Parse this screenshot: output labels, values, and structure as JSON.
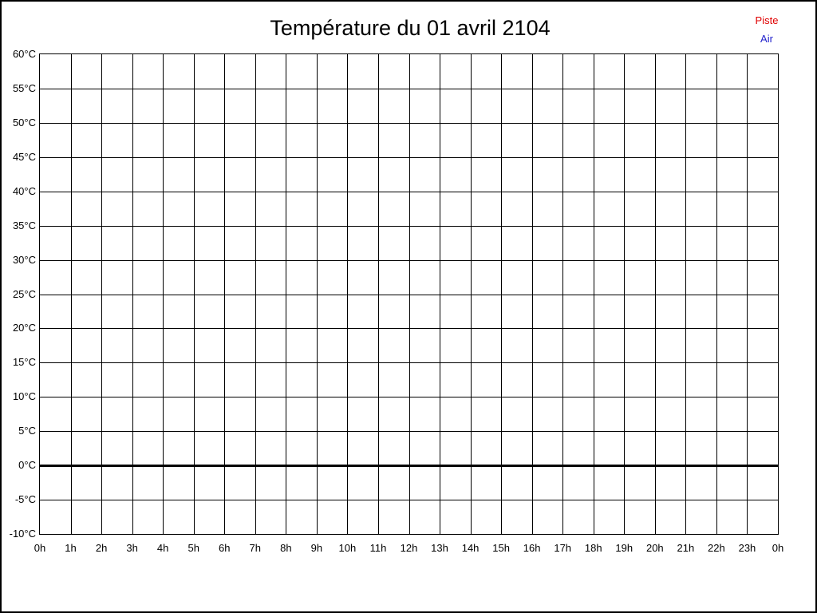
{
  "chart": {
    "title": "Température du 01 avril 2104"
  },
  "legend": {
    "items": [
      {
        "label": "Piste",
        "color": "#e00000"
      },
      {
        "label": "Air",
        "color": "#2222cc"
      }
    ]
  },
  "chart_data": {
    "type": "line",
    "title": "Température du 01 avril 2104",
    "xlabel": "",
    "ylabel": "",
    "x_ticks": [
      "0h",
      "1h",
      "2h",
      "3h",
      "4h",
      "5h",
      "6h",
      "7h",
      "8h",
      "9h",
      "10h",
      "11h",
      "12h",
      "13h",
      "14h",
      "15h",
      "16h",
      "17h",
      "18h",
      "19h",
      "20h",
      "21h",
      "22h",
      "23h",
      "0h"
    ],
    "y_ticks": [
      "60°C",
      "55°C",
      "50°C",
      "45°C",
      "40°C",
      "35°C",
      "30°C",
      "25°C",
      "20°C",
      "15°C",
      "10°C",
      "5°C",
      "0°C",
      "-5°C",
      "-10°C"
    ],
    "ylim": [
      -10,
      60
    ],
    "y_step": 5,
    "x_hours": 24,
    "grid": true,
    "zero_line_value": 0,
    "grid_color": "#000000",
    "series": [
      {
        "name": "Piste",
        "color": "#e00000",
        "values": []
      },
      {
        "name": "Air",
        "color": "#2222cc",
        "values": []
      }
    ],
    "legend_position": "top-right"
  }
}
